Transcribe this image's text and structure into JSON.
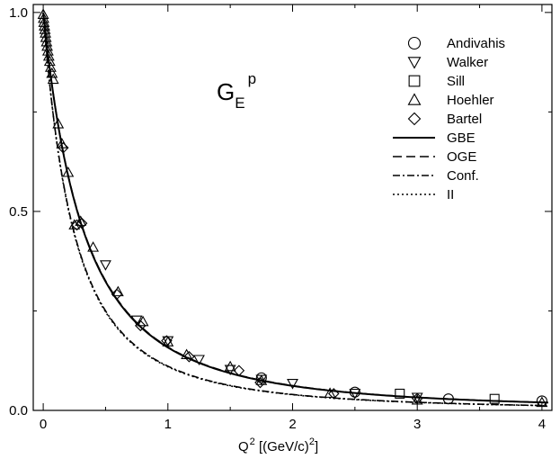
{
  "chart_data": {
    "type": "scatter",
    "title": "",
    "annotation": {
      "main": "G",
      "sub": "E",
      "sup": "p"
    },
    "xlabel": {
      "pre": "Q",
      "sup": "2",
      "post": " [(GeV/c)",
      "sup2": "2",
      "tail": "]"
    },
    "ylabel": "",
    "xlim": [
      -0.08,
      4.08
    ],
    "ylim": [
      0,
      1.02
    ],
    "x_ticks": [
      0,
      1,
      2,
      3,
      4
    ],
    "x_tick_labels": [
      "0",
      "1",
      "2",
      "3",
      "4"
    ],
    "y_ticks": [
      0,
      0.5,
      1.0
    ],
    "y_tick_labels": [
      "0.0",
      "0.5",
      "1.0"
    ],
    "grid": false,
    "legend_position": "top-right",
    "legend": [
      {
        "label": "Andivahis",
        "kind": "marker",
        "marker": "circle"
      },
      {
        "label": "Walker",
        "kind": "marker",
        "marker": "triangle-down"
      },
      {
        "label": "Sill",
        "kind": "marker",
        "marker": "square"
      },
      {
        "label": "Hoehler",
        "kind": "marker",
        "marker": "triangle-up"
      },
      {
        "label": "Bartel",
        "kind": "marker",
        "marker": "diamond"
      },
      {
        "label": "GBE",
        "kind": "line",
        "dash": "solid"
      },
      {
        "label": "OGE",
        "kind": "line",
        "dash": "dashed"
      },
      {
        "label": "Conf.",
        "kind": "line",
        "dash": "dashdot"
      },
      {
        "label": "II",
        "kind": "line",
        "dash": "dotted"
      }
    ],
    "curves": [
      {
        "name": "GBE",
        "dash": "solid",
        "lambda2": 0.66,
        "power": 2
      },
      {
        "name": "OGE",
        "dash": "dashed",
        "lambda2": 0.665,
        "power": 2
      },
      {
        "name": "Conf.",
        "dash": "dashdot",
        "lambda2": 0.5,
        "power": 2
      },
      {
        "name": "II",
        "dash": "dotted",
        "lambda2": 0.495,
        "power": 2
      }
    ],
    "series": [
      {
        "name": "Andivahis",
        "marker": "circle",
        "points": [
          [
            1.75,
            0.082
          ],
          [
            2.5,
            0.046
          ],
          [
            3.25,
            0.029
          ],
          [
            4.0,
            0.024
          ]
        ]
      },
      {
        "name": "Walker",
        "marker": "triangle-down",
        "points": [
          [
            0.5,
            0.366
          ],
          [
            0.75,
            0.227
          ],
          [
            1.0,
            0.175
          ],
          [
            1.25,
            0.128
          ],
          [
            1.5,
            0.103
          ],
          [
            1.75,
            0.078
          ],
          [
            2.0,
            0.068
          ],
          [
            2.5,
            0.043
          ],
          [
            3.0,
            0.033
          ]
        ]
      },
      {
        "name": "Sill",
        "marker": "square",
        "points": [
          [
            2.86,
            0.042
          ],
          [
            3.62,
            0.029
          ]
        ]
      },
      {
        "name": "Hoehler",
        "marker": "triangle-up",
        "points": [
          [
            0.0,
            0.995
          ],
          [
            0.003,
            0.985
          ],
          [
            0.006,
            0.975
          ],
          [
            0.01,
            0.966
          ],
          [
            0.014,
            0.957
          ],
          [
            0.018,
            0.948
          ],
          [
            0.022,
            0.937
          ],
          [
            0.027,
            0.926
          ],
          [
            0.032,
            0.915
          ],
          [
            0.038,
            0.903
          ],
          [
            0.045,
            0.89
          ],
          [
            0.052,
            0.877
          ],
          [
            0.06,
            0.862
          ],
          [
            0.07,
            0.847
          ],
          [
            0.08,
            0.832
          ],
          [
            0.12,
            0.72
          ],
          [
            0.15,
            0.67
          ],
          [
            0.2,
            0.598
          ],
          [
            0.25,
            0.466
          ],
          [
            0.3,
            0.475
          ],
          [
            0.4,
            0.41
          ],
          [
            0.6,
            0.298
          ],
          [
            0.8,
            0.223
          ],
          [
            1.0,
            0.172
          ],
          [
            1.15,
            0.14
          ],
          [
            1.5,
            0.11
          ],
          [
            1.75,
            0.075
          ],
          [
            2.3,
            0.043
          ],
          [
            3.0,
            0.026
          ],
          [
            4.0,
            0.02
          ]
        ]
      },
      {
        "name": "Bartel",
        "marker": "diamond",
        "points": [
          [
            0.16,
            0.66
          ],
          [
            0.27,
            0.466
          ],
          [
            0.31,
            0.47
          ],
          [
            0.59,
            0.292
          ],
          [
            0.78,
            0.213
          ],
          [
            0.99,
            0.175
          ],
          [
            1.17,
            0.135
          ],
          [
            1.57,
            0.1
          ],
          [
            1.74,
            0.07
          ],
          [
            2.33,
            0.042
          ],
          [
            3.0,
            0.03
          ]
        ]
      }
    ]
  }
}
